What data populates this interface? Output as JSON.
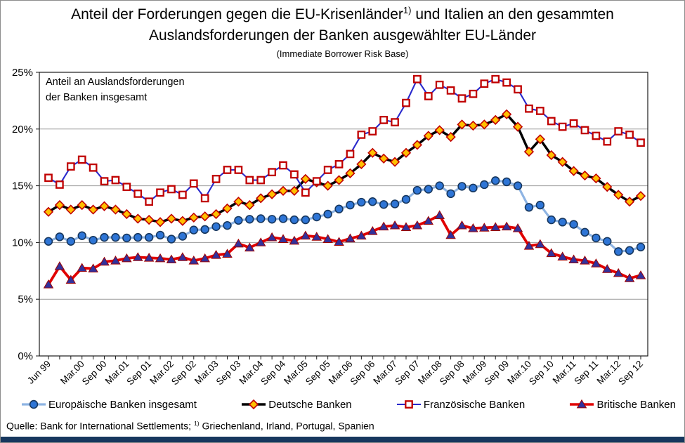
{
  "title": {
    "line1_pre": "Anteil der Forderungen gegen die EU-Krisenländer",
    "line1_sup": "1)",
    "line1_post": " und Italien an den gesammten",
    "line2": "Auslandsforderungen der Banken ausgewählter EU-Länder",
    "subtitle": "(Immediate Borrower Risk Base)"
  },
  "annotation": {
    "line1": "Anteil an Auslandsforderungen",
    "line2": "der Banken insgesamt"
  },
  "source": {
    "pre": "Quelle: Bank for International Settlements; ",
    "sup": "1)",
    "post": " Griechenland, Irland, Portugal, Spanien"
  },
  "bottom_bar_color": "#17375E",
  "chart_data": {
    "type": "line",
    "x_axis_note": "quarterly, Jun 1999 - Sep 2012 (54 points)",
    "x_labels": [
      "Jun 99",
      "Mar.00",
      "Sep 00",
      "Mar.01",
      "Sep 01",
      "Mar.02",
      "Sep 02",
      "Mar.03",
      "Sep 03",
      "Mar.04",
      "Sep 04",
      "Mar.05",
      "Sep 05",
      "Mar.06",
      "Sep 06",
      "Mar.07",
      "Sep 07",
      "Mar.08",
      "Sep 08",
      "Mar.09",
      "Sep 09",
      "Mar.10",
      "Sep 10",
      "Mar.11",
      "Sep 11",
      "Mar.12",
      "Sep 12"
    ],
    "x_label_positions": [
      0,
      3,
      5,
      7,
      9,
      11,
      13,
      15,
      17,
      19,
      21,
      23,
      25,
      27,
      29,
      31,
      33,
      35,
      37,
      39,
      41,
      43,
      45,
      47,
      49,
      51,
      53
    ],
    "ylim": [
      0,
      25
    ],
    "ytick_values": [
      25,
      20,
      15,
      10,
      5,
      0
    ],
    "ytick_labels": [
      "25%",
      "20%",
      "15%",
      "10%",
      "5%",
      "0%"
    ],
    "grid": "horizontal",
    "legend_position": "bottom",
    "series": [
      {
        "name": "Europäische Banken insgesamt",
        "line_color": "#8EB4E3",
        "line_width": 3.2,
        "marker": "circle",
        "marker_fill": "#2E75D6",
        "marker_stroke": "#17375E",
        "values": [
          10.1,
          10.5,
          10.1,
          10.6,
          10.2,
          10.45,
          10.45,
          10.4,
          10.45,
          10.45,
          10.65,
          10.3,
          10.55,
          11.1,
          11.15,
          11.4,
          11.5,
          11.95,
          12.05,
          12.1,
          12.05,
          12.1,
          12.0,
          12.0,
          12.25,
          12.5,
          12.95,
          13.3,
          13.55,
          13.6,
          13.35,
          13.4,
          13.8,
          14.6,
          14.7,
          15.0,
          14.3,
          14.95,
          14.8,
          15.1,
          15.45,
          15.35,
          15.0,
          13.1,
          13.3,
          12.0,
          11.8,
          11.6,
          10.9,
          10.4,
          10.1,
          9.2,
          9.3,
          9.6
        ]
      },
      {
        "name": "Deutsche Banken",
        "line_color": "#000000",
        "line_width": 3.5,
        "marker": "diamond",
        "marker_fill": "#FFC000",
        "marker_stroke": "#C00000",
        "values": [
          12.7,
          13.3,
          12.9,
          13.3,
          12.9,
          13.2,
          12.9,
          12.5,
          12.1,
          12.0,
          11.8,
          12.1,
          11.9,
          12.2,
          12.3,
          12.5,
          13.0,
          13.6,
          13.3,
          13.9,
          14.25,
          14.55,
          14.55,
          15.6,
          15.3,
          15.0,
          15.5,
          16.1,
          16.9,
          17.9,
          17.4,
          17.1,
          17.9,
          18.6,
          19.4,
          19.9,
          19.3,
          20.4,
          20.3,
          20.4,
          20.8,
          21.3,
          20.2,
          18.0,
          19.1,
          17.7,
          17.1,
          16.3,
          15.9,
          15.65,
          14.9,
          14.2,
          13.6,
          14.1
        ]
      },
      {
        "name": "Französische Banken",
        "line_color": "#2929CC",
        "line_width": 2.1,
        "marker": "open-square",
        "marker_fill": "#FFFFFF",
        "marker_stroke": "#C00000",
        "values": [
          15.7,
          15.1,
          16.7,
          17.3,
          16.6,
          15.4,
          15.5,
          14.9,
          14.3,
          13.6,
          14.4,
          14.7,
          14.2,
          15.2,
          13.9,
          15.6,
          16.4,
          16.4,
          15.5,
          15.5,
          16.2,
          16.8,
          16.0,
          14.4,
          15.4,
          16.4,
          16.9,
          17.8,
          19.5,
          19.8,
          20.8,
          20.6,
          22.3,
          24.4,
          22.9,
          23.9,
          23.4,
          22.7,
          23.1,
          24.0,
          24.4,
          24.1,
          23.5,
          21.8,
          21.6,
          20.7,
          20.2,
          20.5,
          19.9,
          19.4,
          18.9,
          19.8,
          19.5,
          18.8
        ]
      },
      {
        "name": "Britische Banken",
        "line_color": "#E10000",
        "line_width": 3.8,
        "marker": "triangle",
        "marker_fill": "#31319C",
        "marker_stroke": "#A00000",
        "values": [
          6.3,
          7.9,
          6.7,
          7.75,
          7.7,
          8.3,
          8.4,
          8.6,
          8.7,
          8.65,
          8.6,
          8.5,
          8.7,
          8.4,
          8.6,
          8.9,
          9.0,
          9.9,
          9.55,
          10.0,
          10.45,
          10.3,
          10.15,
          10.6,
          10.5,
          10.3,
          10.05,
          10.35,
          10.6,
          11.0,
          11.4,
          11.5,
          11.35,
          11.5,
          11.9,
          12.4,
          10.65,
          11.5,
          11.25,
          11.3,
          11.35,
          11.4,
          11.25,
          9.7,
          9.85,
          9.05,
          8.75,
          8.5,
          8.4,
          8.15,
          7.65,
          7.3,
          6.85,
          7.1
        ]
      }
    ]
  }
}
